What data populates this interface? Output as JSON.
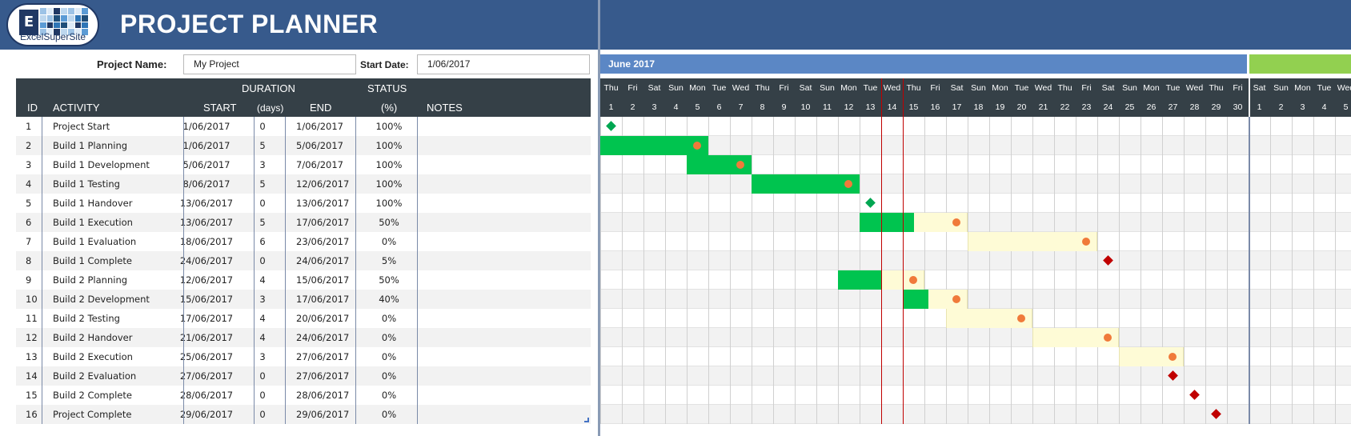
{
  "header": {
    "logo_letter": "E",
    "logo_text": "ExcelSuperSite",
    "title": "PROJECT PLANNER"
  },
  "info": {
    "project_name_label": "Project Name:",
    "project_name_value": "My Project",
    "start_date_label": "Start Date:",
    "start_date_value": "1/06/2017"
  },
  "table": {
    "headers": {
      "id": "ID",
      "activity": "ACTIVITY",
      "duration": "DURATION",
      "start": "START",
      "days": "(days)",
      "end": "END",
      "status": "STATUS",
      "pct": "(%)",
      "notes": "NOTES"
    },
    "rows": [
      {
        "id": "1",
        "activity": "Project Start",
        "start": "1/06/2017",
        "days": "0",
        "end": "1/06/2017",
        "status": "100%"
      },
      {
        "id": "2",
        "activity": "Build 1 Planning",
        "start": "1/06/2017",
        "days": "5",
        "end": "5/06/2017",
        "status": "100%"
      },
      {
        "id": "3",
        "activity": "Build 1 Development",
        "start": "5/06/2017",
        "days": "3",
        "end": "7/06/2017",
        "status": "100%"
      },
      {
        "id": "4",
        "activity": "Build 1 Testing",
        "start": "8/06/2017",
        "days": "5",
        "end": "12/06/2017",
        "status": "100%"
      },
      {
        "id": "5",
        "activity": "Build 1 Handover",
        "start": "13/06/2017",
        "days": "0",
        "end": "13/06/2017",
        "status": "100%"
      },
      {
        "id": "6",
        "activity": "Build 1 Execution",
        "start": "13/06/2017",
        "days": "5",
        "end": "17/06/2017",
        "status": "50%"
      },
      {
        "id": "7",
        "activity": "Build 1 Evaluation",
        "start": "18/06/2017",
        "days": "6",
        "end": "23/06/2017",
        "status": "0%"
      },
      {
        "id": "8",
        "activity": "Build 1 Complete",
        "start": "24/06/2017",
        "days": "0",
        "end": "24/06/2017",
        "status": "5%"
      },
      {
        "id": "9",
        "activity": "Build 2 Planning",
        "start": "12/06/2017",
        "days": "4",
        "end": "15/06/2017",
        "status": "50%"
      },
      {
        "id": "10",
        "activity": "Build 2 Development",
        "start": "15/06/2017",
        "days": "3",
        "end": "17/06/2017",
        "status": "40%"
      },
      {
        "id": "11",
        "activity": "Build 2 Testing",
        "start": "17/06/2017",
        "days": "4",
        "end": "20/06/2017",
        "status": "0%"
      },
      {
        "id": "12",
        "activity": "Build 2 Handover",
        "start": "21/06/2017",
        "days": "4",
        "end": "24/06/2017",
        "status": "0%"
      },
      {
        "id": "13",
        "activity": "Build 2 Execution",
        "start": "25/06/2017",
        "days": "3",
        "end": "27/06/2017",
        "status": "0%"
      },
      {
        "id": "14",
        "activity": "Build 2 Evaluation",
        "start": "27/06/2017",
        "days": "0",
        "end": "27/06/2017",
        "status": "0%"
      },
      {
        "id": "15",
        "activity": "Build 2 Complete",
        "start": "28/06/2017",
        "days": "0",
        "end": "28/06/2017",
        "status": "0%"
      },
      {
        "id": "16",
        "activity": "Project Complete",
        "start": "29/06/2017",
        "days": "0",
        "end": "29/06/2017",
        "status": "0%"
      }
    ]
  },
  "gantt": {
    "month_label": "June 2017",
    "today_day": 14,
    "days": [
      {
        "dow": "Thu",
        "num": "1"
      },
      {
        "dow": "Fri",
        "num": "2"
      },
      {
        "dow": "Sat",
        "num": "3"
      },
      {
        "dow": "Sun",
        "num": "4"
      },
      {
        "dow": "Mon",
        "num": "5"
      },
      {
        "dow": "Tue",
        "num": "6"
      },
      {
        "dow": "Wed",
        "num": "7"
      },
      {
        "dow": "Thu",
        "num": "8"
      },
      {
        "dow": "Fri",
        "num": "9"
      },
      {
        "dow": "Sat",
        "num": "10"
      },
      {
        "dow": "Sun",
        "num": "11"
      },
      {
        "dow": "Mon",
        "num": "12"
      },
      {
        "dow": "Tue",
        "num": "13"
      },
      {
        "dow": "Wed",
        "num": "14"
      },
      {
        "dow": "Thu",
        "num": "15"
      },
      {
        "dow": "Fri",
        "num": "16"
      },
      {
        "dow": "Sat",
        "num": "17"
      },
      {
        "dow": "Sun",
        "num": "18"
      },
      {
        "dow": "Mon",
        "num": "19"
      },
      {
        "dow": "Tue",
        "num": "20"
      },
      {
        "dow": "Wed",
        "num": "21"
      },
      {
        "dow": "Thu",
        "num": "22"
      },
      {
        "dow": "Fri",
        "num": "23"
      },
      {
        "dow": "Sat",
        "num": "24"
      },
      {
        "dow": "Sun",
        "num": "25"
      },
      {
        "dow": "Mon",
        "num": "26"
      },
      {
        "dow": "Tue",
        "num": "27"
      },
      {
        "dow": "Wed",
        "num": "28"
      },
      {
        "dow": "Thu",
        "num": "29"
      },
      {
        "dow": "Fri",
        "num": "30"
      },
      {
        "dow": "Sat",
        "num": "1"
      },
      {
        "dow": "Sun",
        "num": "2"
      },
      {
        "dow": "Mon",
        "num": "3"
      },
      {
        "dow": "Tue",
        "num": "4"
      },
      {
        "dow": "Wed",
        "num": "5"
      }
    ],
    "colors": {
      "header_blue": "#375a8c",
      "june_bar": "#5b87c5",
      "july_bar": "#92d050",
      "complete": "#00c44f",
      "remaining": "#fefbd6",
      "progress_dot": "#f07a3a",
      "milestone_done": "#00a651",
      "milestone_pending": "#c00000",
      "today_line": "#c00000"
    },
    "tasks": [
      {
        "type": "milestone",
        "day": 1,
        "done": true
      },
      {
        "type": "bar",
        "start": 1,
        "days": 5,
        "pct": 1.0
      },
      {
        "type": "bar",
        "start": 5,
        "days": 3,
        "pct": 1.0
      },
      {
        "type": "bar",
        "start": 8,
        "days": 5,
        "pct": 1.0
      },
      {
        "type": "milestone",
        "day": 13,
        "done": true
      },
      {
        "type": "bar",
        "start": 13,
        "days": 5,
        "pct": 0.5
      },
      {
        "type": "bar",
        "start": 18,
        "days": 6,
        "pct": 0.0
      },
      {
        "type": "milestone",
        "day": 24,
        "done": false
      },
      {
        "type": "bar",
        "start": 12,
        "days": 4,
        "pct": 0.5
      },
      {
        "type": "bar",
        "start": 15,
        "days": 3,
        "pct": 0.4
      },
      {
        "type": "bar",
        "start": 17,
        "days": 4,
        "pct": 0.0
      },
      {
        "type": "bar",
        "start": 21,
        "days": 4,
        "pct": 0.0
      },
      {
        "type": "bar",
        "start": 25,
        "days": 3,
        "pct": 0.0
      },
      {
        "type": "milestone",
        "day": 27,
        "done": false
      },
      {
        "type": "milestone",
        "day": 28,
        "done": false
      },
      {
        "type": "milestone",
        "day": 29,
        "done": false
      }
    ]
  }
}
